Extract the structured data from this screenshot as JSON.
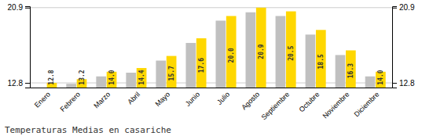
{
  "chart_data": {
    "type": "bar",
    "title": "Temperaturas Medias en casariche",
    "categories": [
      "Enero",
      "Febrero",
      "Marzo",
      "Abril",
      "Mayo",
      "Junio",
      "Julio",
      "Agosto",
      "Septiembre",
      "Octubre",
      "Noviembre",
      "Diciembre"
    ],
    "series": [
      {
        "color": "#C0C0C0",
        "values": [
          12.3,
          12.7,
          13.5,
          13.9,
          15.2,
          17.1,
          19.5,
          20.4,
          20.0,
          18.0,
          15.8,
          13.5
        ]
      },
      {
        "color": "#FFD700",
        "values": [
          12.8,
          13.2,
          14.0,
          14.4,
          15.7,
          17.6,
          20.0,
          20.9,
          20.5,
          18.5,
          16.3,
          14.0
        ],
        "data_labels": true,
        "value_labels": [
          "12.8",
          "13.2",
          "14.0",
          "14.4",
          "15.7",
          "17.6",
          "20.0",
          "20.9",
          "20.5",
          "18.5",
          "16.3",
          "14.0"
        ]
      }
    ],
    "ylim": [
      12.3,
      21.05
    ],
    "yticks": [
      12.8,
      20.9
    ],
    "grid": true
  }
}
